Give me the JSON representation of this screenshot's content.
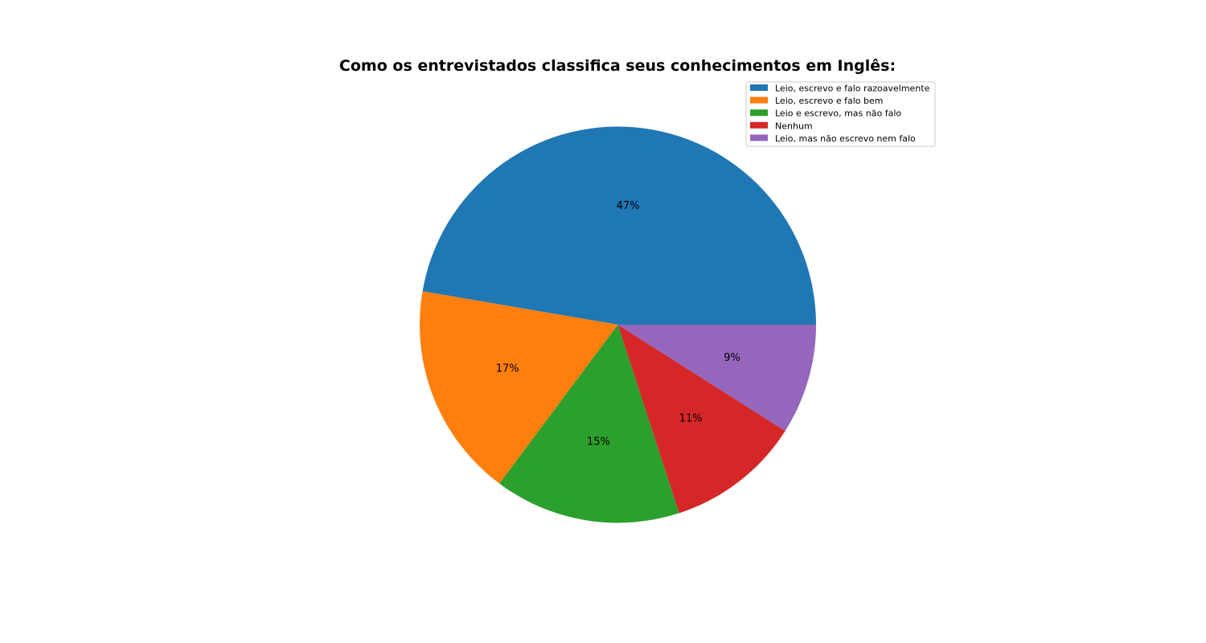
{
  "chart_data": {
    "type": "pie",
    "title": "Como os entrevistados classifica seus conhecimentos em Inglês:",
    "start_angle_deg": 0,
    "direction": "counterclockwise",
    "legend_position": "upper-right",
    "slices": [
      {
        "label": "Leio, escrevo e falo razoavelmente",
        "value": 47.3,
        "pct_label": "47%",
        "color": "#1f77b4"
      },
      {
        "label": "Leio, escrevo e falo bem",
        "value": 17.5,
        "pct_label": "17%",
        "color": "#ff7f0e"
      },
      {
        "label": "Leio e escrevo, mas não falo",
        "value": 15.2,
        "pct_label": "15%",
        "color": "#2ca02c"
      },
      {
        "label": "Nenhum",
        "value": 11.0,
        "pct_label": "11%",
        "color": "#d62728"
      },
      {
        "label": "Leio, mas não escrevo nem falo",
        "value": 9.0,
        "pct_label": "9%",
        "color": "#9467bd"
      }
    ]
  }
}
